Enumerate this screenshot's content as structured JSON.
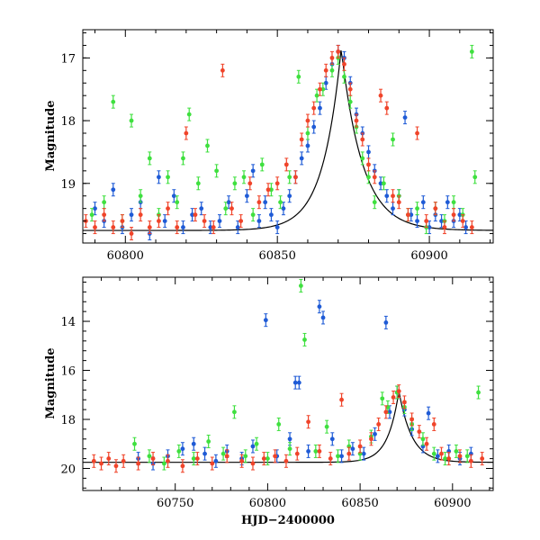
{
  "chart_data": [
    {
      "type": "scatter",
      "title": "",
      "xlabel": "",
      "ylabel": "Magnitude",
      "xlim": [
        60786,
        60921
      ],
      "ylim": [
        19.95,
        16.55
      ],
      "y_inverted": true,
      "xticks": [
        60800,
        60850,
        60900
      ],
      "xtick_labels": [
        "60800",
        "60850",
        "60900"
      ],
      "yticks": [
        17,
        18,
        19
      ],
      "ytick_labels": [
        "17",
        "18",
        "19"
      ],
      "colors": {
        "blue": "#1f5bd6",
        "green": "#3fe03f",
        "red": "#f0442a",
        "model": "#000000"
      },
      "model_curve": {
        "baseline": 19.75,
        "peak_x": 60871,
        "peak_mag": 16.85,
        "rise_scale": 6,
        "decay_scale": 7
      },
      "series": [
        {
          "color": "blue",
          "points": [
            [
              60790,
              19.4
            ],
            [
              60793,
              19.6
            ],
            [
              60796,
              19.1
            ],
            [
              60799,
              19.7
            ],
            [
              60802,
              19.5
            ],
            [
              60805,
              19.3
            ],
            [
              60808,
              19.8
            ],
            [
              60811,
              18.9
            ],
            [
              60813,
              19.6
            ],
            [
              60816,
              19.2
            ],
            [
              60819,
              19.7
            ],
            [
              60822,
              19.5
            ],
            [
              60825,
              19.4
            ],
            [
              60828,
              19.7
            ],
            [
              60831,
              19.6
            ],
            [
              60834,
              19.3
            ],
            [
              60837,
              19.7
            ],
            [
              60840,
              19.2
            ],
            [
              60842,
              18.8
            ],
            [
              60844,
              19.6
            ],
            [
              60846,
              19.3
            ],
            [
              60848,
              19.5
            ],
            [
              60850,
              19.7
            ],
            [
              60852,
              19.4
            ],
            [
              60854,
              19.2
            ],
            [
              60856,
              18.9
            ],
            [
              60858,
              18.6
            ],
            [
              60860,
              18.4
            ],
            [
              60862,
              18.1
            ],
            [
              60864,
              17.8
            ],
            [
              60866,
              17.4
            ],
            [
              60868,
              17.1
            ],
            [
              60870,
              16.9
            ],
            [
              60872,
              17.0
            ],
            [
              60874,
              17.4
            ],
            [
              60876,
              17.9
            ],
            [
              60878,
              18.2
            ],
            [
              60880,
              18.5
            ],
            [
              60882,
              18.8
            ],
            [
              60884,
              19.0
            ],
            [
              60886,
              19.2
            ],
            [
              60888,
              19.4
            ],
            [
              60890,
              19.2
            ],
            [
              60892,
              17.95
            ],
            [
              60894,
              19.5
            ],
            [
              60896,
              19.6
            ],
            [
              60898,
              19.3
            ],
            [
              60900,
              19.7
            ],
            [
              60902,
              19.5
            ],
            [
              60904,
              19.6
            ],
            [
              60906,
              19.3
            ],
            [
              60908,
              19.6
            ],
            [
              60910,
              19.5
            ],
            [
              60912,
              19.7
            ]
          ]
        },
        {
          "color": "green",
          "points": [
            [
              60789,
              19.5
            ],
            [
              60793,
              19.3
            ],
            [
              60796,
              17.7
            ],
            [
              60799,
              19.6
            ],
            [
              60802,
              18.0
            ],
            [
              60805,
              19.2
            ],
            [
              60808,
              18.6
            ],
            [
              60811,
              19.5
            ],
            [
              60814,
              18.9
            ],
            [
              60817,
              19.3
            ],
            [
              60819,
              18.6
            ],
            [
              60821,
              17.9
            ],
            [
              60824,
              19.0
            ],
            [
              60827,
              18.4
            ],
            [
              60830,
              18.8
            ],
            [
              60833,
              19.4
            ],
            [
              60836,
              19.0
            ],
            [
              60839,
              18.9
            ],
            [
              60842,
              19.5
            ],
            [
              60845,
              18.7
            ],
            [
              60848,
              19.1
            ],
            [
              60851,
              19.3
            ],
            [
              60854,
              18.9
            ],
            [
              60857,
              17.3
            ],
            [
              60860,
              18.2
            ],
            [
              60863,
              17.6
            ],
            [
              60865,
              17.5
            ],
            [
              60868,
              17.2
            ],
            [
              60870,
              17.0
            ],
            [
              60872,
              17.3
            ],
            [
              60874,
              17.7
            ],
            [
              60876,
              18.1
            ],
            [
              60878,
              18.6
            ],
            [
              60880,
              18.9
            ],
            [
              60882,
              19.3
            ],
            [
              60885,
              19.0
            ],
            [
              60888,
              18.3
            ],
            [
              60890,
              19.2
            ],
            [
              60893,
              19.5
            ],
            [
              60896,
              19.4
            ],
            [
              60899,
              19.7
            ],
            [
              60902,
              19.4
            ],
            [
              60905,
              19.6
            ],
            [
              60908,
              19.3
            ],
            [
              60911,
              19.5
            ],
            [
              60914,
              16.9
            ],
            [
              60915,
              18.9
            ]
          ]
        },
        {
          "color": "red",
          "points": [
            [
              60787,
              19.6
            ],
            [
              60790,
              19.7
            ],
            [
              60793,
              19.5
            ],
            [
              60796,
              19.7
            ],
            [
              60799,
              19.6
            ],
            [
              60802,
              19.8
            ],
            [
              60805,
              19.5
            ],
            [
              60808,
              19.7
            ],
            [
              60811,
              19.6
            ],
            [
              60814,
              19.4
            ],
            [
              60817,
              19.7
            ],
            [
              60820,
              18.2
            ],
            [
              60823,
              19.5
            ],
            [
              60826,
              19.6
            ],
            [
              60829,
              19.7
            ],
            [
              60832,
              17.2
            ],
            [
              60835,
              19.4
            ],
            [
              60838,
              19.6
            ],
            [
              60841,
              19.0
            ],
            [
              60844,
              19.3
            ],
            [
              60847,
              19.1
            ],
            [
              60850,
              19.0
            ],
            [
              60853,
              18.7
            ],
            [
              60856,
              18.9
            ],
            [
              60858,
              18.3
            ],
            [
              60860,
              18.0
            ],
            [
              60862,
              17.8
            ],
            [
              60864,
              17.5
            ],
            [
              60866,
              17.2
            ],
            [
              60868,
              17.0
            ],
            [
              60870,
              16.9
            ],
            [
              60872,
              17.1
            ],
            [
              60874,
              17.5
            ],
            [
              60876,
              18.0
            ],
            [
              60878,
              18.3
            ],
            [
              60880,
              18.7
            ],
            [
              60882,
              18.9
            ],
            [
              60884,
              17.6
            ],
            [
              60886,
              17.8
            ],
            [
              60888,
              19.2
            ],
            [
              60890,
              19.3
            ],
            [
              60893,
              19.5
            ],
            [
              60896,
              18.2
            ],
            [
              60899,
              19.6
            ],
            [
              60902,
              19.4
            ],
            [
              60905,
              19.7
            ],
            [
              60908,
              19.5
            ],
            [
              60911,
              19.6
            ],
            [
              60914,
              19.7
            ]
          ]
        }
      ]
    },
    {
      "type": "scatter",
      "title": "",
      "xlabel": "HJD−2400000",
      "ylabel": "Magnitude",
      "xlim": [
        60700,
        60922
      ],
      "ylim": [
        20.9,
        12.2
      ],
      "y_inverted": true,
      "xticks": [
        60750,
        60800,
        60850,
        60900
      ],
      "xtick_labels": [
        "60750",
        "60800",
        "60850",
        "60900"
      ],
      "yticks": [
        14,
        16,
        18,
        20
      ],
      "ytick_labels": [
        "14",
        "16",
        "18",
        "20"
      ],
      "colors": {
        "blue": "#1f5bd6",
        "green": "#3fe03f",
        "red": "#f0442a",
        "model": "#000000"
      },
      "model_curve": {
        "baseline": 19.75,
        "peak_x": 60871,
        "peak_mag": 16.85,
        "rise_scale": 6,
        "decay_scale": 7
      },
      "series": [
        {
          "color": "blue",
          "points": [
            [
              60730,
              19.6
            ],
            [
              60738,
              19.8
            ],
            [
              60746,
              19.5
            ],
            [
              60754,
              19.2
            ],
            [
              60760,
              19.0
            ],
            [
              60766,
              19.4
            ],
            [
              60772,
              19.7
            ],
            [
              60778,
              19.3
            ],
            [
              60786,
              19.6
            ],
            [
              60792,
              19.1
            ],
            [
              60799,
              13.95
            ],
            [
              60805,
              19.5
            ],
            [
              60812,
              18.8
            ],
            [
              60815,
              16.5
            ],
            [
              60817,
              16.5
            ],
            [
              60822,
              19.3
            ],
            [
              60828,
              13.4
            ],
            [
              60830,
              13.85
            ],
            [
              60835,
              18.8
            ],
            [
              60840,
              19.5
            ],
            [
              60846,
              19.2
            ],
            [
              60852,
              19.4
            ],
            [
              60858,
              18.6
            ],
            [
              60864,
              14.05
            ],
            [
              60866,
              17.7
            ],
            [
              60870,
              16.9
            ],
            [
              60874,
              17.6
            ],
            [
              60878,
              18.4
            ],
            [
              60884,
              19.1
            ],
            [
              60887,
              17.75
            ],
            [
              60892,
              19.5
            ],
            [
              60898,
              19.3
            ],
            [
              60904,
              19.6
            ],
            [
              60910,
              19.4
            ]
          ]
        },
        {
          "color": "green",
          "points": [
            [
              60728,
              19.0
            ],
            [
              60736,
              19.5
            ],
            [
              60744,
              19.8
            ],
            [
              60752,
              19.3
            ],
            [
              60760,
              19.6
            ],
            [
              60768,
              18.9
            ],
            [
              60776,
              19.4
            ],
            [
              60782,
              17.7
            ],
            [
              60788,
              19.5
            ],
            [
              60794,
              19.0
            ],
            [
              60800,
              19.6
            ],
            [
              60806,
              18.2
            ],
            [
              60812,
              19.2
            ],
            [
              60818,
              12.55
            ],
            [
              60820,
              14.75
            ],
            [
              60826,
              19.3
            ],
            [
              60832,
              18.3
            ],
            [
              60838,
              19.5
            ],
            [
              60844,
              19.1
            ],
            [
              60850,
              19.4
            ],
            [
              60856,
              18.7
            ],
            [
              60862,
              17.15
            ],
            [
              60865,
              17.5
            ],
            [
              60870,
              16.9
            ],
            [
              60874,
              17.5
            ],
            [
              60878,
              18.2
            ],
            [
              60884,
              18.8
            ],
            [
              60890,
              19.4
            ],
            [
              60896,
              19.6
            ],
            [
              60902,
              19.3
            ],
            [
              60908,
              19.5
            ],
            [
              60914,
              16.9
            ]
          ]
        },
        {
          "color": "red",
          "points": [
            [
              60706,
              19.7
            ],
            [
              60710,
              19.8
            ],
            [
              60714,
              19.6
            ],
            [
              60718,
              19.9
            ],
            [
              60722,
              19.7
            ],
            [
              60730,
              19.8
            ],
            [
              60738,
              19.6
            ],
            [
              60746,
              19.7
            ],
            [
              60754,
              19.9
            ],
            [
              60762,
              19.6
            ],
            [
              60770,
              19.8
            ],
            [
              60778,
              19.5
            ],
            [
              60786,
              19.7
            ],
            [
              60792,
              19.8
            ],
            [
              60798,
              19.6
            ],
            [
              60804,
              19.5
            ],
            [
              60810,
              19.7
            ],
            [
              60816,
              19.4
            ],
            [
              60822,
              18.1
            ],
            [
              60828,
              19.3
            ],
            [
              60834,
              19.6
            ],
            [
              60840,
              17.2
            ],
            [
              60844,
              19.4
            ],
            [
              60850,
              19.1
            ],
            [
              60856,
              18.8
            ],
            [
              60860,
              18.2
            ],
            [
              60864,
              17.7
            ],
            [
              60868,
              17.1
            ],
            [
              60871,
              16.85
            ],
            [
              60874,
              17.3
            ],
            [
              60878,
              18.0
            ],
            [
              60882,
              18.5
            ],
            [
              60886,
              19.0
            ],
            [
              60890,
              18.2
            ],
            [
              60894,
              19.4
            ],
            [
              60898,
              19.6
            ],
            [
              60904,
              19.5
            ],
            [
              60910,
              19.7
            ],
            [
              60916,
              19.6
            ]
          ]
        }
      ]
    }
  ]
}
